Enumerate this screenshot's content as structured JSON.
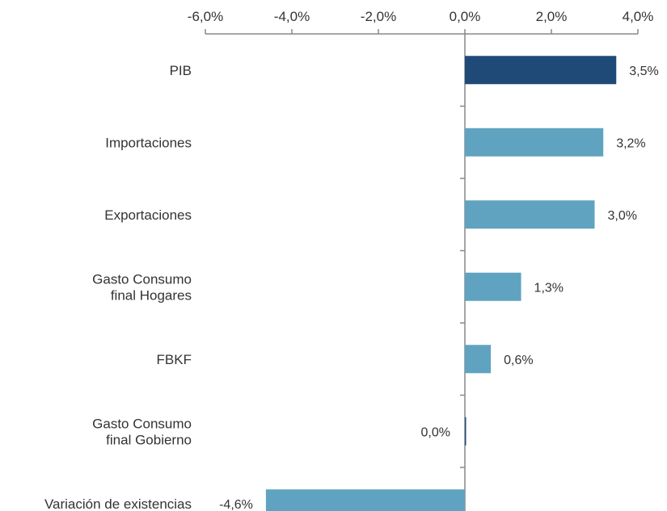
{
  "chart_data": {
    "type": "bar",
    "orientation": "horizontal",
    "title": "",
    "xlabel": "",
    "ylabel": "",
    "x_axis_position": "top",
    "xlim": [
      -6.0,
      4.0
    ],
    "x_ticks": [
      -6.0,
      -4.0,
      -2.0,
      0.0,
      2.0,
      4.0
    ],
    "x_tick_labels": [
      "-6,0%",
      "-4,0%",
      "-2,0%",
      "0,0%",
      "2,0%",
      "4,0%"
    ],
    "grid": false,
    "categories": [
      [
        "PIB"
      ],
      [
        "Importaciones"
      ],
      [
        "Exportaciones"
      ],
      [
        "Gasto Consumo",
        "final Hogares"
      ],
      [
        "FBKF"
      ],
      [
        "Gasto Consumo",
        "final Gobierno"
      ],
      [
        "Variación de existencias"
      ]
    ],
    "values": [
      3.5,
      3.2,
      3.0,
      1.3,
      0.6,
      0.0,
      -4.6
    ],
    "value_labels": [
      "3,5%",
      "3,2%",
      "3,0%",
      "1,3%",
      "0,6%",
      "0,0%",
      "-4,6%"
    ],
    "bar_colors": [
      "#1f4a78",
      "#5fa3c0",
      "#5fa3c0",
      "#5fa3c0",
      "#5fa3c0",
      "#1f4a78",
      "#5fa3c0"
    ],
    "axis_color": "#888888"
  }
}
